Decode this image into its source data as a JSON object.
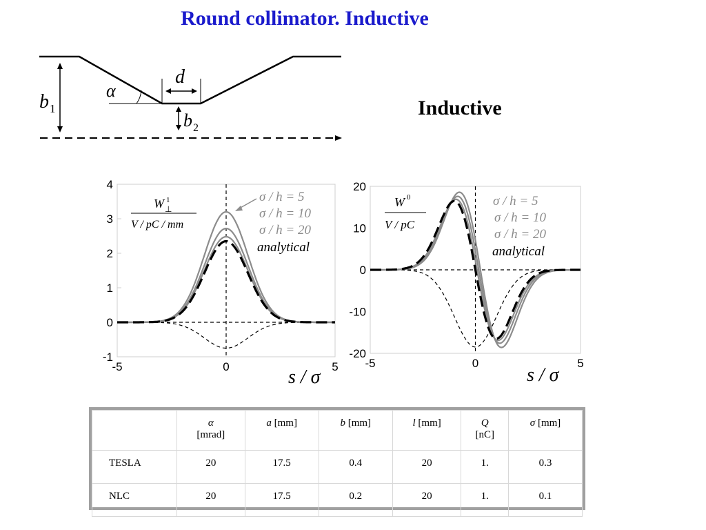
{
  "slide": {
    "title": "Round collimator. Inductive",
    "heading": "Inductive"
  },
  "geometry_sketch": {
    "labels": [
      "b",
      "1",
      "α",
      "d",
      "b",
      "2"
    ]
  },
  "chart_data": [
    {
      "type": "line",
      "xlabel": "s / σ",
      "ylabel": "W⊥1 / (V / pC / mm)",
      "xlim": [
        -5,
        5
      ],
      "ylim": [
        -1,
        4
      ],
      "xticks": [
        "-5",
        "0",
        "5"
      ],
      "yticks": [
        "-1",
        "0",
        "1",
        "2",
        "3",
        "4"
      ],
      "legend": [
        "σ / h = 5",
        "σ / h = 10",
        "σ / h = 20",
        "analytical"
      ],
      "series": [
        {
          "name": "σ / h = 5",
          "peak": 3.2,
          "style": "solid",
          "color": "#8c8c8c"
        },
        {
          "name": "σ / h = 10",
          "peak": 2.72,
          "style": "solid",
          "color": "#8c8c8c"
        },
        {
          "name": "σ / h = 20",
          "peak": 2.48,
          "style": "solid",
          "color": "#8c8c8c"
        },
        {
          "name": "analytical",
          "peak": 2.35,
          "style": "dashed",
          "color": "#000000"
        }
      ],
      "bunch_profile": {
        "depth": -0.75
      }
    },
    {
      "type": "line",
      "xlabel": "s / σ",
      "ylabel": "W0 / (V / pC)",
      "xlim": [
        -5,
        5
      ],
      "ylim": [
        -20,
        20
      ],
      "xticks": [
        "-5",
        "0",
        "5"
      ],
      "yticks": [
        "-20",
        "-10",
        "0",
        "10",
        "20"
      ],
      "legend": [
        "σ / h = 5",
        "σ / h = 10",
        "σ / h = 20",
        "analytical"
      ],
      "series": [
        {
          "name": "σ / h = 5",
          "amplitude": 18.6,
          "style": "solid",
          "color": "#8c8c8c"
        },
        {
          "name": "σ / h = 10",
          "amplitude": 17.6,
          "style": "solid",
          "color": "#8c8c8c"
        },
        {
          "name": "σ / h = 20",
          "amplitude": 16.9,
          "style": "solid",
          "color": "#8c8c8c"
        },
        {
          "name": "analytical",
          "amplitude": 16.5,
          "style": "dashed",
          "color": "#000000"
        }
      ],
      "bunch_profile": {
        "depth": -18.5
      }
    }
  ],
  "table": {
    "headers": [
      [
        "",
        ""
      ],
      [
        "α",
        "[mrad]"
      ],
      [
        "a [mm]",
        ""
      ],
      [
        "b [mm]",
        ""
      ],
      [
        "l [mm]",
        ""
      ],
      [
        "Q",
        "[nC]"
      ],
      [
        "σ [mm]",
        ""
      ]
    ],
    "rows": [
      [
        "TESLA",
        "20",
        "17.5",
        "0.4",
        "20",
        "1.",
        "0.3"
      ],
      [
        "NLC",
        "20",
        "17.5",
        "0.2",
        "20",
        "1.",
        "0.1"
      ]
    ]
  }
}
